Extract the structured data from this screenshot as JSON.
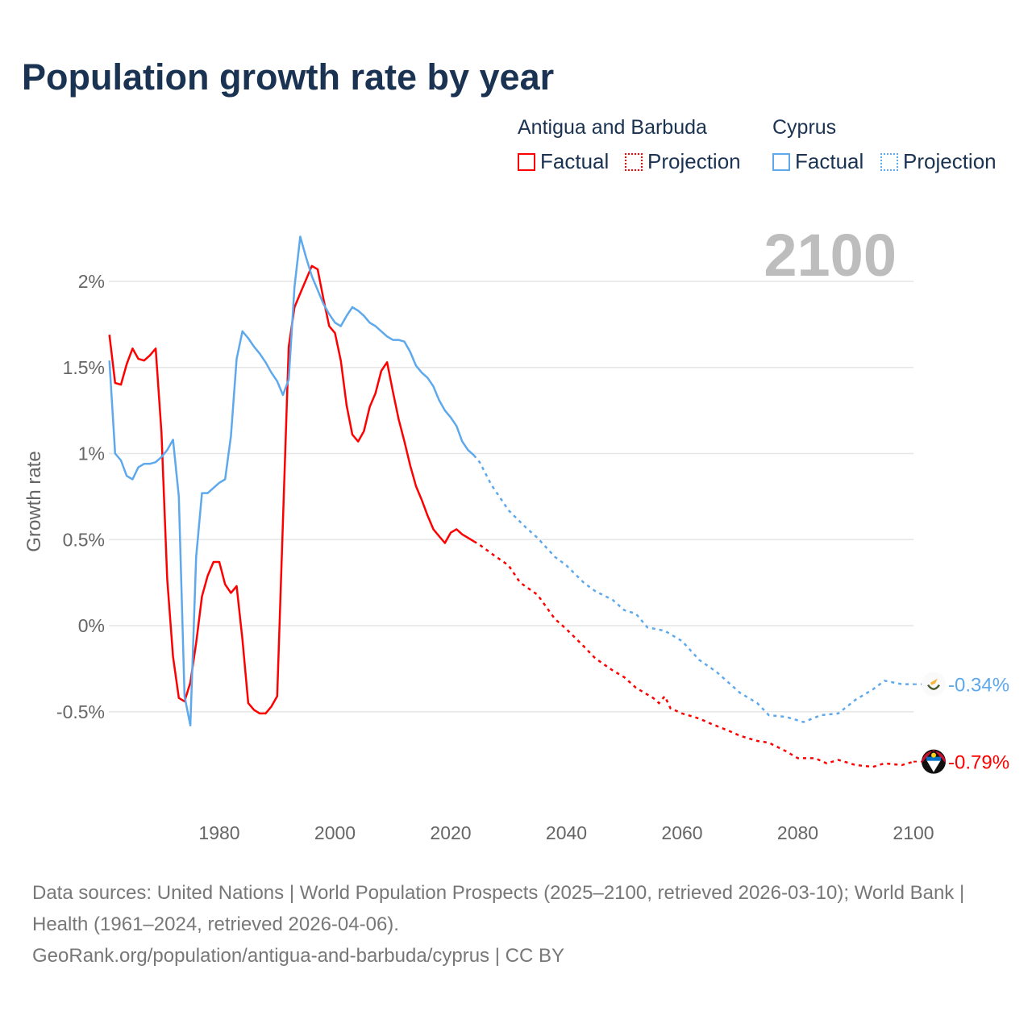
{
  "title": "Population growth rate by year",
  "legend": {
    "groups": [
      {
        "name": "Antigua and Barbuda",
        "color": "#ff0000",
        "items": [
          "Factual",
          "Projection"
        ]
      },
      {
        "name": "Cyprus",
        "color": "#5ea8ec",
        "items": [
          "Factual",
          "Projection"
        ]
      }
    ]
  },
  "year_display": "2100",
  "chart_data": {
    "type": "line",
    "title": "Population growth rate by year",
    "xlabel": "",
    "ylabel": "Growth rate",
    "xlim": [
      1961,
      2100
    ],
    "ylim": [
      -0.9,
      2.3
    ],
    "x_ticks": [
      1980,
      2000,
      2020,
      2040,
      2060,
      2080,
      2100
    ],
    "x_tick_labels": [
      "1980",
      "2000",
      "2020",
      "2040",
      "2060",
      "2080",
      "2100"
    ],
    "y_ticks": [
      2,
      1.5,
      1,
      0.5,
      0,
      -0.5
    ],
    "y_tick_labels": [
      "2%",
      "1.5%",
      "1%",
      "0.5%",
      "0%",
      "-0.5%"
    ],
    "grid": true,
    "series": [
      {
        "name": "Antigua and Barbuda",
        "color": "#ff0000",
        "end_label": "-0.79%",
        "factual": {
          "x": [
            1961,
            1962,
            1963,
            1964,
            1965,
            1966,
            1967,
            1968,
            1969,
            1970,
            1971,
            1972,
            1973,
            1974,
            1975,
            1976,
            1977,
            1978,
            1979,
            1980,
            1981,
            1982,
            1983,
            1984,
            1985,
            1986,
            1987,
            1988,
            1989,
            1990,
            1991,
            1992,
            1993,
            1994,
            1995,
            1996,
            1997,
            1998,
            1999,
            2000,
            2001,
            2002,
            2003,
            2004,
            2005,
            2006,
            2007,
            2008,
            2009,
            2010,
            2011,
            2012,
            2013,
            2014,
            2015,
            2016,
            2017,
            2018,
            2019,
            2020,
            2021,
            2022,
            2023,
            2024
          ],
          "y": [
            1.69,
            1.41,
            1.4,
            1.52,
            1.61,
            1.55,
            1.54,
            1.57,
            1.61,
            1.12,
            0.27,
            -0.18,
            -0.42,
            -0.44,
            -0.33,
            -0.1,
            0.17,
            0.29,
            0.37,
            0.37,
            0.24,
            0.19,
            0.23,
            -0.08,
            -0.45,
            -0.49,
            -0.51,
            -0.51,
            -0.47,
            -0.41,
            0.6,
            1.62,
            1.85,
            1.93,
            2.01,
            2.09,
            2.07,
            1.9,
            1.74,
            1.7,
            1.54,
            1.28,
            1.11,
            1.07,
            1.13,
            1.27,
            1.35,
            1.48,
            1.53,
            1.36,
            1.2,
            1.07,
            0.93,
            0.81,
            0.73,
            0.64,
            0.56,
            0.52,
            0.48,
            0.54,
            0.56,
            0.53,
            0.51,
            0.49
          ]
        },
        "projection": {
          "x": [
            2024,
            2025,
            2027,
            2030,
            2032,
            2035,
            2038,
            2040,
            2043,
            2045,
            2048,
            2050,
            2052,
            2055,
            2056,
            2057,
            2058,
            2060,
            2063,
            2065,
            2068,
            2070,
            2073,
            2075,
            2078,
            2080,
            2083,
            2085,
            2087,
            2090,
            2093,
            2095,
            2098,
            2100
          ],
          "y": [
            0.49,
            0.47,
            0.42,
            0.35,
            0.25,
            0.18,
            0.04,
            -0.02,
            -0.12,
            -0.19,
            -0.26,
            -0.3,
            -0.36,
            -0.42,
            -0.45,
            -0.41,
            -0.48,
            -0.51,
            -0.54,
            -0.57,
            -0.61,
            -0.64,
            -0.67,
            -0.68,
            -0.73,
            -0.77,
            -0.77,
            -0.8,
            -0.78,
            -0.81,
            -0.82,
            -0.8,
            -0.81,
            -0.79
          ]
        }
      },
      {
        "name": "Cyprus",
        "color": "#5ea8ec",
        "end_label": "-0.34%",
        "factual": {
          "x": [
            1961,
            1962,
            1963,
            1964,
            1965,
            1966,
            1967,
            1968,
            1969,
            1970,
            1971,
            1972,
            1973,
            1974,
            1975,
            1976,
            1977,
            1978,
            1979,
            1980,
            1981,
            1982,
            1983,
            1984,
            1985,
            1986,
            1987,
            1988,
            1989,
            1990,
            1991,
            1992,
            1993,
            1994,
            1995,
            1996,
            1997,
            1998,
            1999,
            2000,
            2001,
            2002,
            2003,
            2004,
            2005,
            2006,
            2007,
            2008,
            2009,
            2010,
            2011,
            2012,
            2013,
            2014,
            2015,
            2016,
            2017,
            2018,
            2019,
            2020,
            2021,
            2022,
            2023,
            2024
          ],
          "y": [
            1.54,
            1.0,
            0.96,
            0.87,
            0.85,
            0.92,
            0.94,
            0.94,
            0.95,
            0.98,
            1.02,
            1.08,
            0.75,
            -0.41,
            -0.58,
            0.4,
            0.77,
            0.77,
            0.8,
            0.83,
            0.85,
            1.1,
            1.55,
            1.71,
            1.67,
            1.62,
            1.58,
            1.53,
            1.47,
            1.42,
            1.34,
            1.43,
            1.97,
            2.26,
            2.14,
            2.03,
            1.95,
            1.87,
            1.81,
            1.76,
            1.74,
            1.8,
            1.85,
            1.83,
            1.8,
            1.76,
            1.74,
            1.71,
            1.68,
            1.66,
            1.66,
            1.65,
            1.59,
            1.51,
            1.47,
            1.44,
            1.39,
            1.31,
            1.25,
            1.21,
            1.16,
            1.07,
            1.02,
            0.99
          ]
        },
        "projection": {
          "x": [
            2024,
            2025,
            2027,
            2030,
            2033,
            2035,
            2038,
            2040,
            2043,
            2045,
            2048,
            2050,
            2052,
            2054,
            2057,
            2060,
            2063,
            2066,
            2070,
            2073,
            2075,
            2078,
            2081,
            2084,
            2087,
            2090,
            2093,
            2095,
            2098,
            2100
          ],
          "y": [
            0.99,
            0.95,
            0.82,
            0.67,
            0.57,
            0.51,
            0.4,
            0.35,
            0.25,
            0.2,
            0.15,
            0.09,
            0.07,
            -0.01,
            -0.03,
            -0.09,
            -0.2,
            -0.27,
            -0.39,
            -0.45,
            -0.52,
            -0.53,
            -0.56,
            -0.52,
            -0.51,
            -0.43,
            -0.37,
            -0.32,
            -0.34,
            -0.34
          ]
        }
      }
    ]
  },
  "source": {
    "line1": "Data sources: United Nations | World Population Prospects (2025–2100, retrieved 2026-03-10); World Bank | Health (1961–2024, retrieved 2026-04-06).",
    "line2": "GeoRank.org/population/antigua-and-barbuda/cyprus | CC BY"
  }
}
